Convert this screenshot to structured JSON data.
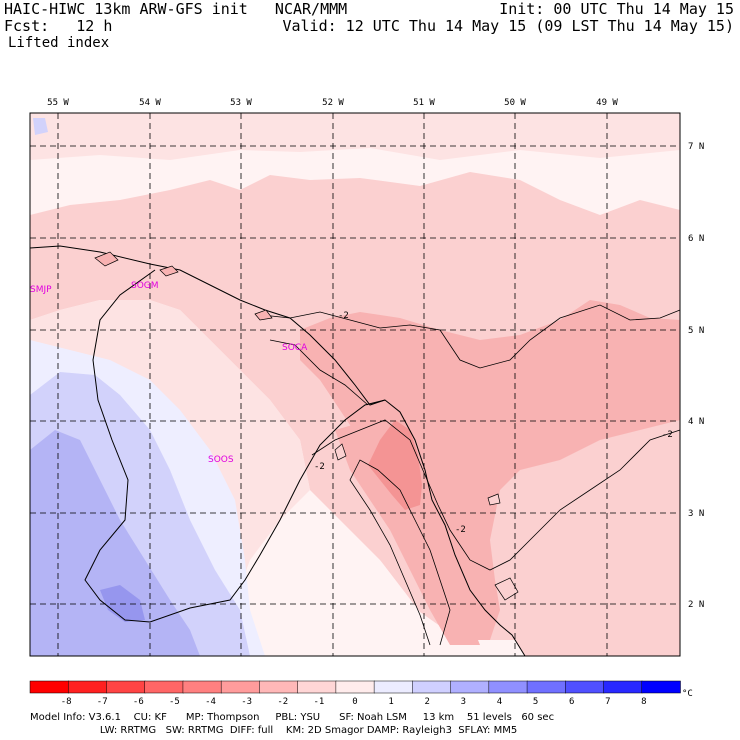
{
  "header": {
    "title": "HAIC-HIWC 13km ARW-GFS init   NCAR/MMM",
    "init": "Init: 00 UTC Thu 14 May 15",
    "fcst": "Fcst:   12 h",
    "valid": "Valid: 12 UTC Thu 14 May 15 (09 LST Thu 14 May 15)",
    "field": "Lifted index"
  },
  "axes": {
    "lon_labels": [
      "55 W",
      "54 W",
      "53 W",
      "52 W",
      "51 W",
      "50 W",
      "49 W"
    ],
    "lat_labels": [
      "7 N",
      "6 N",
      "5 N",
      "4 N",
      "3 N",
      "2 N"
    ]
  },
  "stations": [
    "SMJP",
    "SOGM",
    "SOCA",
    "SOOS"
  ],
  "contour_labels": [
    "-2",
    "-2",
    "-2",
    "-2"
  ],
  "colorbar": {
    "ticks": [
      "-8",
      "-7",
      "-6",
      "-5",
      "-4",
      "-3",
      "-2",
      "-1",
      "0",
      "1",
      "2",
      "3",
      "4",
      "5",
      "6",
      "7",
      "8"
    ],
    "unit": "°C",
    "colors": [
      "#ff0000",
      "#ff2020",
      "#ff4444",
      "#ff6666",
      "#ff8080",
      "#ff9c9c",
      "#ffb8b8",
      "#ffd6d6",
      "#ffecec",
      "#ececff",
      "#d0d0ff",
      "#b0b0ff",
      "#9090ff",
      "#7070ff",
      "#5050ff",
      "#2828ff",
      "#0000ff"
    ]
  },
  "colors": {
    "light_pink": "#fde3e3",
    "pink": "#fbd0d0",
    "medium_pink": "#f8b2b2",
    "dark_pink": "#f49494",
    "near_zero": "#fff3f3",
    "light_blue": "#eeeeff",
    "blue": "#d2d2fb",
    "medium_blue": "#b4b4f5",
    "dark_blue": "#9696ee"
  },
  "footer": {
    "line1": "Model Info: V3.6.1    CU: KF      MP: Thompson     PBL: YSU      SF: Noah LSM     13 km    51 levels   60 sec",
    "line2": "                      LW: RRTMG   SW: RRTMG  DIFF: full    KM: 2D Smagor DAMP: Rayleigh3  SFLAY: MM5"
  }
}
